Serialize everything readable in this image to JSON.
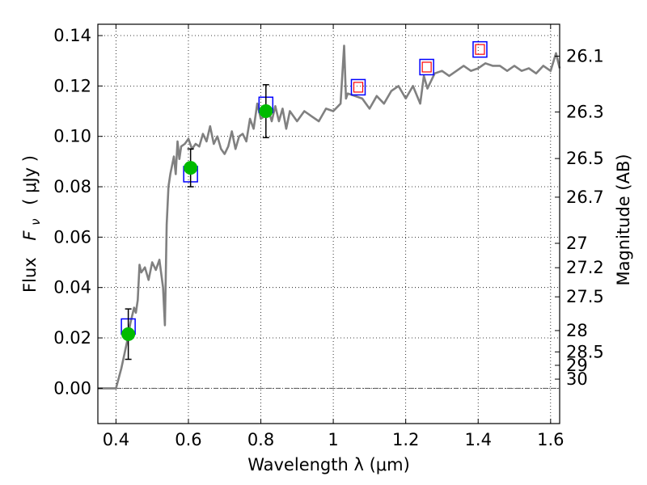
{
  "chart_data": {
    "type": "line",
    "xlabel": "Wavelength  λ (μm)",
    "ylabel_prefix": "Flux",
    "ylabel_symbol": "F",
    "ylabel_sub": "ν",
    "ylabel_unit": "( μJy )",
    "ylabel_right": "Magnitude (AB)",
    "xlim": [
      0.35,
      1.625
    ],
    "ylim": [
      -0.014,
      0.1445
    ],
    "x_ticks": [
      {
        "value": 0.4,
        "label": "0.4"
      },
      {
        "value": 0.6,
        "label": "0.6"
      },
      {
        "value": 0.8,
        "label": "0.8"
      },
      {
        "value": 1.0,
        "label": "1"
      },
      {
        "value": 1.2,
        "label": "1.2"
      },
      {
        "value": 1.4,
        "label": "1.4"
      },
      {
        "value": 1.6,
        "label": "1.6"
      }
    ],
    "y_ticks": [
      {
        "value": 0.0,
        "label": "0.00"
      },
      {
        "value": 0.02,
        "label": "0.02"
      },
      {
        "value": 0.04,
        "label": "0.04"
      },
      {
        "value": 0.06,
        "label": "0.06"
      },
      {
        "value": 0.08,
        "label": "0.08"
      },
      {
        "value": 0.1,
        "label": "0.10"
      },
      {
        "value": 0.12,
        "label": "0.12"
      },
      {
        "value": 0.14,
        "label": "0.14"
      }
    ],
    "mag_ticks": [
      {
        "value": 26.1,
        "label": "26.1"
      },
      {
        "value": 26.3,
        "label": "26.3"
      },
      {
        "value": 26.5,
        "label": "26.5"
      },
      {
        "value": 26.7,
        "label": "26.7"
      },
      {
        "value": 27.0,
        "label": "27"
      },
      {
        "value": 27.2,
        "label": "27.2"
      },
      {
        "value": 27.5,
        "label": "27.5"
      },
      {
        "value": 28.0,
        "label": "28"
      },
      {
        "value": 28.5,
        "label": "28.5"
      },
      {
        "value": 29.0,
        "label": "29"
      },
      {
        "value": 30.0,
        "label": "30"
      }
    ],
    "grid": true,
    "colors": {
      "spectrum": "#808080",
      "observed": "#00bb00",
      "model_box": "#0000ff",
      "upper_box": "#ff0000",
      "errorbar": "#000000",
      "grid": "#000000"
    },
    "series": [
      {
        "kind": "spectrum",
        "x": [
          0.35,
          0.4,
          0.415,
          0.43,
          0.44,
          0.45,
          0.455,
          0.46,
          0.465,
          0.47,
          0.48,
          0.49,
          0.5,
          0.51,
          0.52,
          0.53,
          0.535,
          0.54,
          0.545,
          0.55,
          0.56,
          0.565,
          0.57,
          0.575,
          0.58,
          0.59,
          0.6,
          0.61,
          0.62,
          0.63,
          0.64,
          0.65,
          0.66,
          0.67,
          0.68,
          0.69,
          0.7,
          0.71,
          0.72,
          0.73,
          0.74,
          0.75,
          0.76,
          0.77,
          0.78,
          0.79,
          0.8,
          0.81,
          0.82,
          0.83,
          0.84,
          0.85,
          0.86,
          0.87,
          0.88,
          0.9,
          0.92,
          0.94,
          0.96,
          0.98,
          1.0,
          1.02,
          1.03,
          1.035,
          1.04,
          1.06,
          1.08,
          1.1,
          1.12,
          1.14,
          1.16,
          1.18,
          1.2,
          1.22,
          1.24,
          1.25,
          1.26,
          1.28,
          1.3,
          1.32,
          1.34,
          1.36,
          1.38,
          1.4,
          1.42,
          1.44,
          1.46,
          1.48,
          1.5,
          1.52,
          1.54,
          1.56,
          1.58,
          1.6,
          1.615,
          1.625
        ],
        "y": [
          0.0,
          0.0,
          0.008,
          0.018,
          0.026,
          0.032,
          0.03,
          0.035,
          0.049,
          0.046,
          0.048,
          0.043,
          0.05,
          0.047,
          0.051,
          0.04,
          0.025,
          0.065,
          0.08,
          0.085,
          0.092,
          0.085,
          0.098,
          0.091,
          0.096,
          0.097,
          0.099,
          0.095,
          0.097,
          0.096,
          0.101,
          0.098,
          0.104,
          0.097,
          0.1,
          0.095,
          0.093,
          0.096,
          0.102,
          0.095,
          0.1,
          0.101,
          0.098,
          0.107,
          0.103,
          0.113,
          0.107,
          0.108,
          0.111,
          0.106,
          0.112,
          0.106,
          0.111,
          0.103,
          0.11,
          0.106,
          0.11,
          0.108,
          0.106,
          0.111,
          0.11,
          0.113,
          0.136,
          0.115,
          0.117,
          0.116,
          0.115,
          0.111,
          0.116,
          0.113,
          0.118,
          0.12,
          0.115,
          0.12,
          0.113,
          0.124,
          0.119,
          0.125,
          0.126,
          0.124,
          0.126,
          0.128,
          0.126,
          0.127,
          0.129,
          0.128,
          0.128,
          0.126,
          0.128,
          0.126,
          0.127,
          0.125,
          0.128,
          0.126,
          0.133,
          0.127
        ]
      },
      {
        "kind": "observed",
        "points": [
          {
            "x": 0.434,
            "y": 0.0215,
            "yerr": 0.01
          },
          {
            "x": 0.606,
            "y": 0.0875,
            "yerr": 0.0075
          },
          {
            "x": 0.814,
            "y": 0.11,
            "yerr": 0.0105
          }
        ]
      },
      {
        "kind": "model_photometry",
        "points": [
          {
            "x": 0.434,
            "y": 0.0245
          },
          {
            "x": 0.606,
            "y": 0.085
          },
          {
            "x": 0.814,
            "y": 0.1125
          },
          {
            "x": 1.069,
            "y": 0.1195
          },
          {
            "x": 1.258,
            "y": 0.1275
          },
          {
            "x": 1.405,
            "y": 0.1345
          }
        ]
      },
      {
        "kind": "upper_limit",
        "points": [
          {
            "x": 1.069,
            "y": 0.1195
          },
          {
            "x": 1.258,
            "y": 0.1275
          },
          {
            "x": 1.405,
            "y": 0.1345
          }
        ]
      }
    ]
  }
}
